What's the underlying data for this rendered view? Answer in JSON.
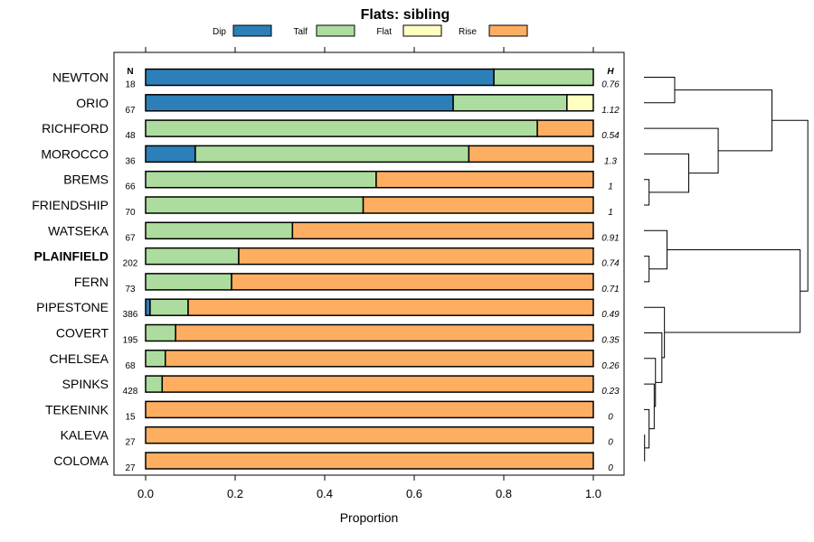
{
  "chart_data": {
    "type": "bar",
    "stacked": true,
    "orientation": "horizontal",
    "title": "Flats: sibling",
    "xlabel": "Proportion",
    "xlim": [
      0,
      1
    ],
    "xticks": [
      "0.0",
      "0.2",
      "0.4",
      "0.6",
      "0.8",
      "1.0"
    ],
    "n_header": "N",
    "h_header": "H",
    "highlighted_category": "PLAINFIELD",
    "legend_position": "top",
    "series": [
      {
        "name": "Dip",
        "color": "#2c7fb8"
      },
      {
        "name": "Talf",
        "color": "#addd9e"
      },
      {
        "name": "Flat",
        "color": "#ffffbf"
      },
      {
        "name": "Rise",
        "color": "#fdae61"
      }
    ],
    "rows": [
      {
        "label": "NEWTON",
        "n": "18",
        "h": "0.76",
        "values": [
          0.778,
          0.222,
          0,
          0
        ]
      },
      {
        "label": "ORIO",
        "n": "67",
        "h": "1.12",
        "values": [
          0.687,
          0.254,
          0.059,
          0
        ]
      },
      {
        "label": "RICHFORD",
        "n": "48",
        "h": "0.54",
        "values": [
          0,
          0.875,
          0,
          0.125
        ]
      },
      {
        "label": "MOROCCO",
        "n": "36",
        "h": "1.3",
        "values": [
          0.111,
          0.611,
          0,
          0.278
        ]
      },
      {
        "label": "BREMS",
        "n": "66",
        "h": "1",
        "values": [
          0,
          0.515,
          0,
          0.485
        ]
      },
      {
        "label": "FRIENDSHIP",
        "n": "70",
        "h": "1",
        "values": [
          0,
          0.486,
          0,
          0.514
        ]
      },
      {
        "label": "WATSEKA",
        "n": "67",
        "h": "0.91",
        "values": [
          0,
          0.328,
          0,
          0.672
        ]
      },
      {
        "label": "PLAINFIELD",
        "n": "202",
        "h": "0.74",
        "values": [
          0,
          0.208,
          0,
          0.792
        ]
      },
      {
        "label": "FERN",
        "n": "73",
        "h": "0.71",
        "values": [
          0,
          0.192,
          0,
          0.808
        ]
      },
      {
        "label": "PIPESTONE",
        "n": "386",
        "h": "0.49",
        "values": [
          0.01,
          0.085,
          0,
          0.905
        ]
      },
      {
        "label": "COVERT",
        "n": "195",
        "h": "0.35",
        "values": [
          0,
          0.067,
          0,
          0.933
        ]
      },
      {
        "label": "CHELSEA",
        "n": "68",
        "h": "0.26",
        "values": [
          0,
          0.044,
          0,
          0.956
        ]
      },
      {
        "label": "SPINKS",
        "n": "428",
        "h": "0.23",
        "values": [
          0,
          0.037,
          0,
          0.963
        ]
      },
      {
        "label": "TEKENINK",
        "n": "15",
        "h": "0",
        "values": [
          0,
          0,
          0,
          1
        ]
      },
      {
        "label": "KALEVA",
        "n": "27",
        "h": "0",
        "values": [
          0,
          0,
          0,
          1
        ]
      },
      {
        "label": "COLOMA",
        "n": "27",
        "h": "0",
        "values": [
          0,
          0,
          0,
          1
        ]
      }
    ],
    "dendrogram": {
      "leaf_order": [
        "NEWTON",
        "ORIO",
        "RICHFORD",
        "MOROCCO",
        "BREMS",
        "FRIENDSHIP",
        "WATSEKA",
        "PLAINFIELD",
        "FERN",
        "PIPESTONE",
        "COVERT",
        "CHELSEA",
        "SPINKS",
        "TEKENINK",
        "KALEVA",
        "COLOMA"
      ],
      "merges": [
        {
          "a": "L0",
          "b": "L1",
          "height": 0.24
        },
        {
          "a": "L4",
          "b": "L5",
          "height": 0.04
        },
        {
          "a": "L3",
          "b": "M1",
          "height": 0.35
        },
        {
          "a": "L2",
          "b": "M2",
          "height": 0.58
        },
        {
          "a": "M0",
          "b": "M3",
          "height": 1.0
        },
        {
          "a": "L7",
          "b": "L8",
          "height": 0.04
        },
        {
          "a": "L6",
          "b": "M5",
          "height": 0.18
        },
        {
          "a": "L14",
          "b": "L15",
          "height": 0.005
        },
        {
          "a": "L13",
          "b": "M7",
          "height": 0.04
        },
        {
          "a": "L12",
          "b": "M8",
          "height": 0.08
        },
        {
          "a": "L11",
          "b": "M9",
          "height": 0.09
        },
        {
          "a": "L10",
          "b": "M10",
          "height": 0.14
        },
        {
          "a": "L9",
          "b": "M11",
          "height": 0.16
        },
        {
          "a": "M6",
          "b": "M12",
          "height": 1.22
        },
        {
          "a": "M4",
          "b": "M13",
          "height": 1.28
        }
      ]
    }
  }
}
